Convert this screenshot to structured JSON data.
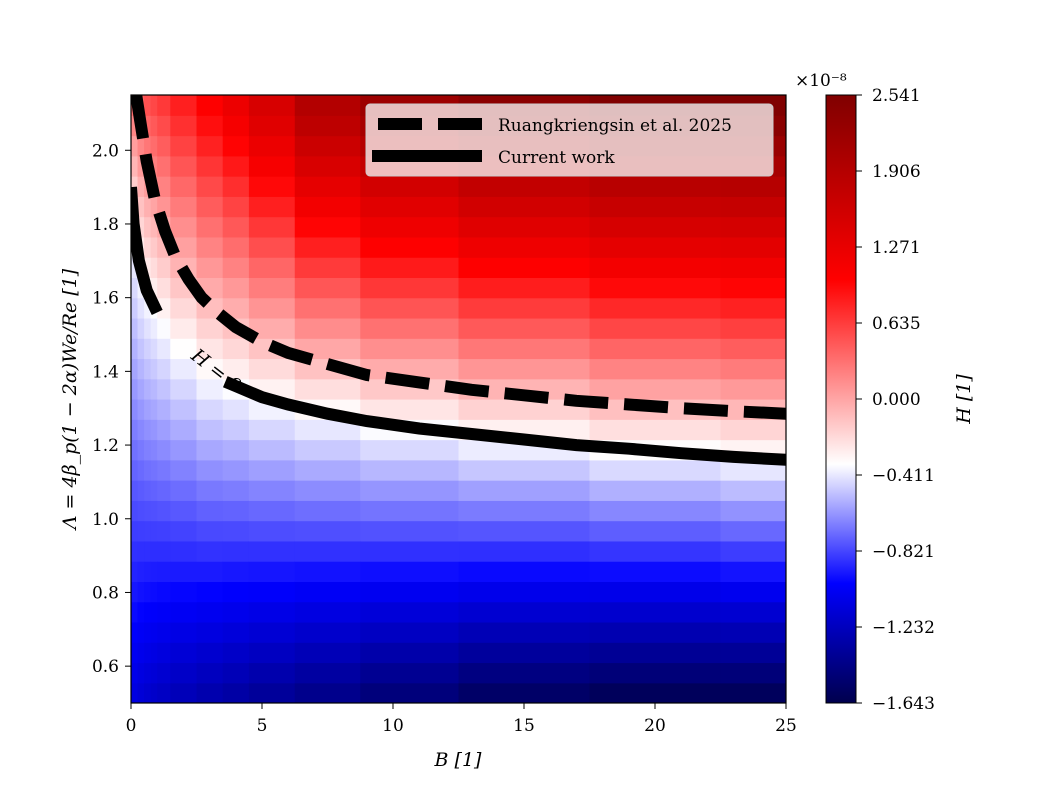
{
  "chart_data": {
    "type": "heatmap",
    "title": "",
    "xlabel": "B [1]",
    "ylabel": "Λ = 4β_p(1 − 2α)We/Re [1]",
    "xlim": [
      0,
      25
    ],
    "ylim": [
      0.5,
      2.15
    ],
    "x_ticks": [
      "0",
      "5",
      "10",
      "15",
      "20",
      "25"
    ],
    "y_ticks": [
      "0.6",
      "0.8",
      "1.0",
      "1.2",
      "1.4",
      "1.6",
      "1.8",
      "2.0"
    ],
    "colorbar": {
      "label": "H [1]",
      "scale_label": "×10⁻⁸",
      "ticks": [
        "2.541",
        "1.906",
        "1.271",
        "0.635",
        "0.000",
        "−0.411",
        "−0.821",
        "−1.232",
        "−1.643"
      ],
      "min": -1.643,
      "max": 2.541,
      "colors": [
        "#00004d",
        "#0000ff",
        "#ffffff",
        "#ff0000",
        "#800000"
      ]
    },
    "x_edges": [
      0,
      0.25,
      0.5,
      0.75,
      1.0,
      1.5,
      2.5,
      3.5,
      4.5,
      6.25,
      8.75,
      12.5,
      17.5,
      22.5,
      25
    ],
    "h_zero_curve": {
      "x": [
        0.0,
        0.1,
        0.3,
        0.6,
        1.0,
        1.5,
        2.0,
        2.5,
        3.0,
        4.0,
        5.0,
        6.0,
        7.5,
        9.0,
        11.0,
        13.0,
        15.0,
        17.0,
        19.0,
        21.0,
        23.0,
        25.0
      ],
      "y": [
        1.9,
        1.8,
        1.7,
        1.62,
        1.56,
        1.5,
        1.46,
        1.42,
        1.39,
        1.36,
        1.33,
        1.31,
        1.285,
        1.265,
        1.245,
        1.23,
        1.215,
        1.2,
        1.19,
        1.178,
        1.168,
        1.16
      ]
    },
    "series": [
      {
        "name": "Ruangkriengsin et al. 2025",
        "style": "dashed",
        "x": [
          0.2,
          0.35,
          0.6,
          0.9,
          1.3,
          1.7,
          2.2,
          2.7,
          3.3,
          4.0,
          5.0,
          6.0,
          7.5,
          9.0,
          11.0,
          13.0,
          15.0,
          17.0,
          19.0,
          21.0,
          23.0,
          25.0
        ],
        "y": [
          2.15,
          2.08,
          1.97,
          1.87,
          1.78,
          1.71,
          1.65,
          1.6,
          1.56,
          1.52,
          1.48,
          1.45,
          1.42,
          1.39,
          1.37,
          1.35,
          1.335,
          1.32,
          1.31,
          1.3,
          1.292,
          1.285
        ]
      },
      {
        "name": "Current work",
        "style": "solid",
        "ref": "h_zero_curve"
      }
    ],
    "contour_label": "H = 0",
    "legend_position": "upper-right",
    "grid": false
  }
}
